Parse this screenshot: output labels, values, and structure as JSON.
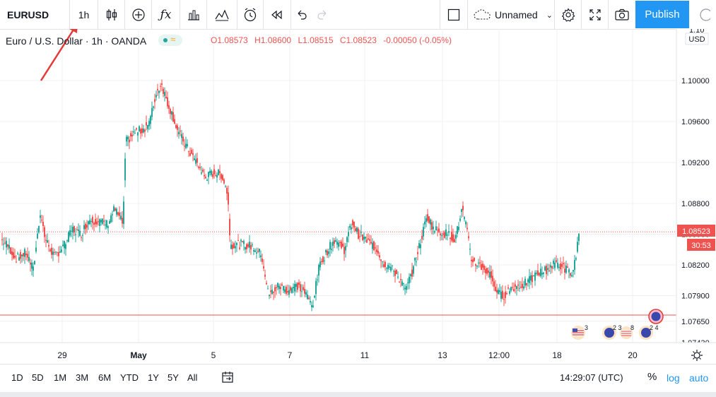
{
  "toolbar": {
    "symbol": "EURUSD",
    "interval": "1h",
    "layout_name": "Unnamed",
    "publish_label": "Publish"
  },
  "legend": {
    "title": "Euro / U.S. Dollar · 1h · OANDA",
    "open": "O1.08573",
    "high": "H1.08600",
    "low": "L1.08515",
    "close": "C1.08523",
    "change": "-0.00050 (-0.05%)"
  },
  "price_axis": {
    "currency": "USD",
    "top_partial": "1.10",
    "bottom_partial": "1.07430",
    "last_price_label": "1.08523",
    "countdown_label": "30:53"
  },
  "time_axis": {
    "labels": [
      "29",
      "May",
      "5",
      "7",
      "11",
      "13",
      "12:00",
      "18",
      "20"
    ]
  },
  "event_markers": {
    "us_count": "3",
    "eu_counts": "2 3",
    "us_count2": "8",
    "eu_counts2": "2 4"
  },
  "bottom_bar": {
    "ranges": [
      "1D",
      "5D",
      "1M",
      "3M",
      "6M",
      "YTD",
      "1Y",
      "5Y",
      "All"
    ],
    "clock": "14:29:07 (UTC)",
    "percent": "%",
    "log": "log",
    "auto": "auto"
  },
  "colors": {
    "up": "#26a69a",
    "down": "#ef5350",
    "accent": "#2196f3",
    "annotation_arrow": "#e53935"
  },
  "chart_data": {
    "type": "candlestick",
    "symbol": "EURUSD",
    "interval": "1h",
    "source": "OANDA",
    "y_ticks": [
      1.0765,
      1.079,
      1.082,
      1.085,
      1.088,
      1.092,
      1.096,
      1.1
    ],
    "ylim": [
      1.0743,
      1.1028
    ],
    "last_price": 1.08523,
    "support_line": 1.0771,
    "waypoints": [
      [
        0,
        1.0845
      ],
      [
        10,
        1.0838
      ],
      [
        20,
        1.0826
      ],
      [
        35,
        1.0832
      ],
      [
        45,
        1.0815
      ],
      [
        55,
        1.0872
      ],
      [
        62,
        1.0845
      ],
      [
        75,
        1.0828
      ],
      [
        90,
        1.084
      ],
      [
        100,
        1.0855
      ],
      [
        112,
        1.085
      ],
      [
        125,
        1.0865
      ],
      [
        140,
        1.0862
      ],
      [
        150,
        1.086
      ],
      [
        160,
        1.0875
      ],
      [
        168,
        1.0865
      ],
      [
        172,
        1.086
      ],
      [
        176,
        1.094
      ],
      [
        190,
        1.095
      ],
      [
        200,
        1.0952
      ],
      [
        210,
        1.096
      ],
      [
        218,
        1.0985
      ],
      [
        226,
        1.0998
      ],
      [
        234,
        1.098
      ],
      [
        240,
        1.097
      ],
      [
        250,
        1.095
      ],
      [
        262,
        1.0935
      ],
      [
        276,
        1.092
      ],
      [
        288,
        1.0905
      ],
      [
        300,
        1.091
      ],
      [
        312,
        1.0908
      ],
      [
        320,
        1.089
      ],
      [
        324,
        1.084
      ],
      [
        340,
        1.084
      ],
      [
        355,
        1.0838
      ],
      [
        368,
        1.083
      ],
      [
        378,
        1.079
      ],
      [
        392,
        1.08
      ],
      [
        405,
        1.0795
      ],
      [
        418,
        1.08
      ],
      [
        430,
        1.0792
      ],
      [
        440,
        1.078
      ],
      [
        450,
        1.082
      ],
      [
        462,
        1.0835
      ],
      [
        472,
        1.0845
      ],
      [
        485,
        1.0835
      ],
      [
        496,
        1.0862
      ],
      [
        505,
        1.085
      ],
      [
        520,
        1.0842
      ],
      [
        532,
        1.0835
      ],
      [
        540,
        1.0822
      ],
      [
        550,
        1.0818
      ],
      [
        560,
        1.081
      ],
      [
        572,
        1.0795
      ],
      [
        582,
        1.0815
      ],
      [
        592,
        1.084
      ],
      [
        602,
        1.0868
      ],
      [
        612,
        1.0855
      ],
      [
        622,
        1.0852
      ],
      [
        632,
        1.085
      ],
      [
        642,
        1.0845
      ],
      [
        652,
        1.0875
      ],
      [
        658,
        1.0855
      ],
      [
        665,
        1.0825
      ],
      [
        680,
        1.0818
      ],
      [
        692,
        1.081
      ],
      [
        702,
        1.0792
      ],
      [
        710,
        1.079
      ],
      [
        722,
        1.0798
      ],
      [
        735,
        1.08
      ],
      [
        748,
        1.0805
      ],
      [
        760,
        1.0812
      ],
      [
        770,
        1.0815
      ],
      [
        785,
        1.0822
      ],
      [
        800,
        1.0815
      ],
      [
        808,
        1.081
      ],
      [
        814,
        1.0835
      ],
      [
        818,
        1.0852
      ]
    ]
  }
}
